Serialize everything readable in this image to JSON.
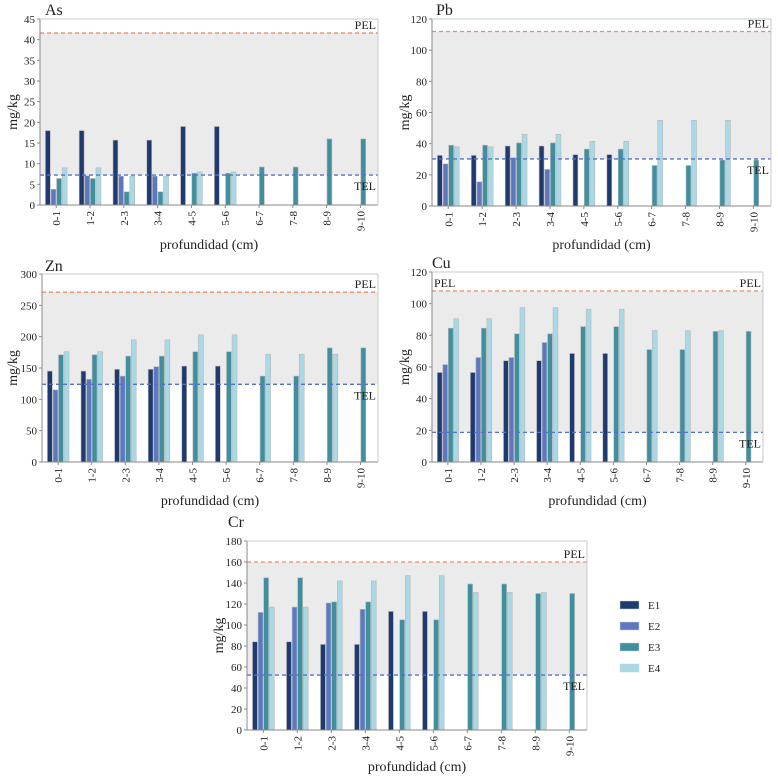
{
  "legend": {
    "entries": [
      {
        "name": "E1",
        "color": "#1f3a6e"
      },
      {
        "name": "E2",
        "color": "#5b78c0"
      },
      {
        "name": "E3",
        "color": "#3f8f9f"
      },
      {
        "name": "E4",
        "color": "#a9d9e6"
      }
    ]
  },
  "colors": {
    "pel_line": "#f08a63",
    "tel_line": "#5572c8",
    "band_fill": "#ebebeb",
    "axis": "#8a8a8a"
  },
  "chart_data": [
    {
      "id": "as",
      "type": "bar",
      "title": "As",
      "xlabel": "profundidad (cm)",
      "ylabel": "mg/kg",
      "ylim": [
        0,
        45
      ],
      "yticks": [
        0,
        5,
        10,
        15,
        20,
        25,
        30,
        35,
        40,
        45
      ],
      "categories": [
        "0-1",
        "1-2",
        "2-3",
        "3-4",
        "4-5",
        "5-6",
        "6-7",
        "7-8",
        "8-9",
        "9-10"
      ],
      "thresholds": {
        "PEL": 41.6,
        "TEL": 7.24
      },
      "threshold_labels": {
        "PEL": "PEL",
        "TEL": "TEL"
      },
      "series": [
        {
          "name": "E1",
          "values": [
            18.0,
            18.0,
            15.7,
            15.7,
            19.0,
            19.0,
            null,
            null,
            null,
            null
          ]
        },
        {
          "name": "E2",
          "values": [
            3.8,
            7.1,
            7.0,
            7.0,
            null,
            null,
            null,
            null,
            null,
            null
          ]
        },
        {
          "name": "E3",
          "values": [
            6.4,
            6.4,
            3.2,
            3.2,
            7.7,
            7.7,
            9.2,
            9.2,
            16.0,
            16.0
          ]
        },
        {
          "name": "E4",
          "values": [
            9.0,
            9.0,
            7.0,
            7.0,
            8.0,
            8.0,
            null,
            null,
            null,
            null
          ]
        }
      ]
    },
    {
      "id": "pb",
      "type": "bar",
      "title": "Pb",
      "xlabel": "profundidad (cm)",
      "ylabel": "mg/kg",
      "ylim": [
        0,
        120
      ],
      "yticks": [
        0,
        20,
        40,
        60,
        80,
        100,
        120
      ],
      "categories": [
        "0-1",
        "1-2",
        "2-3",
        "3-4",
        "4-5",
        "5-6",
        "6-7",
        "7-8",
        "8-9",
        "9-10"
      ],
      "thresholds": {
        "PEL": 112,
        "TEL": 30.2
      },
      "threshold_labels": {
        "PEL": "PEL",
        "TEL": "TEL"
      },
      "series": [
        {
          "name": "E1",
          "values": [
            32.5,
            32.5,
            38.5,
            38.5,
            33.0,
            33.0,
            null,
            null,
            null,
            null
          ]
        },
        {
          "name": "E2",
          "values": [
            27.0,
            15.5,
            31.0,
            23.5,
            null,
            null,
            null,
            null,
            null,
            null
          ]
        },
        {
          "name": "E3",
          "values": [
            39.0,
            39.0,
            40.5,
            40.5,
            36.5,
            36.5,
            26.0,
            26.0,
            29.5,
            29.5
          ]
        },
        {
          "name": "E4",
          "values": [
            38.0,
            38.0,
            46.0,
            46.0,
            41.5,
            41.5,
            55.0,
            55.0,
            55.0,
            null
          ]
        }
      ]
    },
    {
      "id": "zn",
      "type": "bar",
      "title": "Zn",
      "xlabel": "profundidad (cm)",
      "ylabel": "mg/kg",
      "ylim": [
        0,
        300
      ],
      "yticks": [
        0,
        50,
        100,
        150,
        200,
        250,
        300
      ],
      "categories": [
        "0-1",
        "1-2",
        "2-3",
        "3-4",
        "4-5",
        "5-6",
        "6-7",
        "7-8",
        "8-9",
        "9-10"
      ],
      "thresholds": {
        "PEL": 271,
        "TEL": 124
      },
      "threshold_labels": {
        "PEL": "PEL",
        "TEL": "TEL"
      },
      "series": [
        {
          "name": "E1",
          "values": [
            145,
            145,
            148,
            148,
            153,
            153,
            null,
            null,
            null,
            null
          ]
        },
        {
          "name": "E2",
          "values": [
            115,
            132,
            137,
            152,
            null,
            null,
            null,
            null,
            null,
            null
          ]
        },
        {
          "name": "E3",
          "values": [
            171,
            171,
            169,
            169,
            176,
            176,
            137,
            137,
            182,
            182
          ]
        },
        {
          "name": "E4",
          "values": [
            176,
            176,
            195,
            195,
            203,
            203,
            172,
            172,
            172,
            null
          ]
        }
      ]
    },
    {
      "id": "cu",
      "type": "bar",
      "title": "Cu",
      "xlabel": "profundidad (cm)",
      "ylabel": "mg/kg",
      "ylim": [
        0,
        120
      ],
      "yticks": [
        0,
        20,
        40,
        60,
        80,
        100,
        120
      ],
      "categories": [
        "0-1",
        "1-2",
        "2-3",
        "3-4",
        "4-5",
        "5-6",
        "6-7",
        "7-8",
        "8-9",
        "9-10"
      ],
      "thresholds": {
        "PEL": 108,
        "TEL": 18.7
      },
      "threshold_labels": {
        "PEL": "PEL",
        "PEL_left": "PEL",
        "TEL": "TEL"
      },
      "series": [
        {
          "name": "E1",
          "values": [
            56.5,
            56.5,
            64.0,
            64.0,
            68.5,
            68.5,
            null,
            null,
            null,
            null
          ]
        },
        {
          "name": "E2",
          "values": [
            61.5,
            66.0,
            66.0,
            75.5,
            null,
            null,
            null,
            null,
            null,
            null
          ]
        },
        {
          "name": "E3",
          "values": [
            84.5,
            84.5,
            81.0,
            81.0,
            85.5,
            85.5,
            71.0,
            71.0,
            82.5,
            82.5
          ]
        },
        {
          "name": "E4",
          "values": [
            90.5,
            90.5,
            97.5,
            97.5,
            96.5,
            96.5,
            83.0,
            83.0,
            83.0,
            null
          ]
        }
      ]
    },
    {
      "id": "cr",
      "type": "bar",
      "title": "Cr",
      "xlabel": "profundidad (cm)",
      "ylabel": "mg/kg",
      "ylim": [
        0,
        180
      ],
      "yticks": [
        0,
        20,
        40,
        60,
        80,
        100,
        120,
        140,
        160,
        180
      ],
      "categories": [
        "0-1",
        "1-2",
        "2-3",
        "3-4",
        "4-5",
        "5-6",
        "6-7",
        "7-8",
        "8-9",
        "9-10"
      ],
      "thresholds": {
        "PEL": 160,
        "TEL": 52.3
      },
      "threshold_labels": {
        "PEL": "PEL",
        "TEL": "TEL"
      },
      "series": [
        {
          "name": "E1",
          "values": [
            84,
            84,
            81.5,
            81.5,
            113,
            113,
            null,
            null,
            null,
            null
          ]
        },
        {
          "name": "E2",
          "values": [
            112,
            117,
            121,
            115,
            null,
            null,
            null,
            null,
            null,
            null
          ]
        },
        {
          "name": "E3",
          "values": [
            145,
            145,
            122,
            122,
            105,
            105,
            139,
            139,
            130,
            130
          ]
        },
        {
          "name": "E4",
          "values": [
            117,
            117,
            142,
            142,
            147,
            147,
            131,
            131,
            131,
            null
          ]
        }
      ]
    }
  ]
}
